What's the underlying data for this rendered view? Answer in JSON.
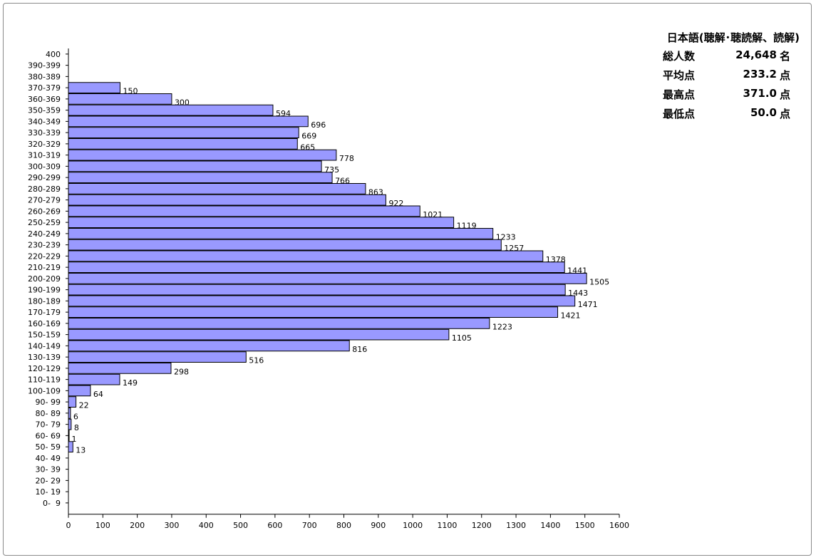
{
  "stats": {
    "title": "日本語(聴解･聴読解、読解)",
    "rows": [
      {
        "label": "総人数",
        "value": "24,648",
        "unit": "名"
      },
      {
        "label": "平均点",
        "value": "233.2",
        "unit": "点"
      },
      {
        "label": "最高点",
        "value": "371.0",
        "unit": "点"
      },
      {
        "label": "最低点",
        "value": "50.0",
        "unit": "点"
      }
    ]
  },
  "colors": {
    "bar_fill": "#9999FF",
    "bar_stroke": "#000000",
    "axis": "#000000",
    "frame": "#8A8A8A"
  },
  "chart_data": {
    "type": "bar",
    "orientation": "horizontal",
    "title": "",
    "xlabel": "",
    "ylabel": "",
    "xlim": [
      0,
      1600
    ],
    "xticks": [
      0,
      100,
      200,
      300,
      400,
      500,
      600,
      700,
      800,
      900,
      1000,
      1100,
      1200,
      1300,
      1400,
      1500,
      1600
    ],
    "grid": false,
    "legend": "none",
    "categories": [
      "400",
      "390-399",
      "380-389",
      "370-379",
      "360-369",
      "350-359",
      "340-349",
      "330-339",
      "320-329",
      "310-319",
      "300-309",
      "290-299",
      "280-289",
      "270-279",
      "260-269",
      "250-259",
      "240-249",
      "230-239",
      "220-229",
      "210-219",
      "200-209",
      "190-199",
      "180-189",
      "170-179",
      "160-169",
      "150-159",
      "140-149",
      "130-139",
      "120-129",
      "110-119",
      "100-109",
      "90- 99",
      "80- 89",
      "70- 79",
      "60- 69",
      "50- 59",
      "40- 49",
      "30- 39",
      "20- 29",
      "10- 19",
      "0-  9"
    ],
    "values": [
      0,
      0,
      0,
      150,
      300,
      594,
      696,
      669,
      665,
      778,
      735,
      766,
      863,
      922,
      1021,
      1119,
      1233,
      1257,
      1378,
      1441,
      1505,
      1443,
      1471,
      1421,
      1223,
      1105,
      816,
      516,
      298,
      149,
      64,
      22,
      6,
      8,
      1,
      13,
      0,
      0,
      0,
      0,
      0
    ],
    "data_labels": [
      "",
      "",
      "",
      "150",
      "300",
      "594",
      "696",
      "669",
      "665",
      "778",
      "735",
      "766",
      "863",
      "922",
      "1021",
      "1119",
      "1233",
      "1257",
      "1378",
      "1441",
      "1505",
      "1443",
      "1471",
      "1421",
      "1223",
      "1105",
      "816",
      "516",
      "298",
      "149",
      "64",
      "22",
      "6",
      "8",
      "1",
      "13",
      "",
      "",
      "",
      "",
      ""
    ]
  }
}
